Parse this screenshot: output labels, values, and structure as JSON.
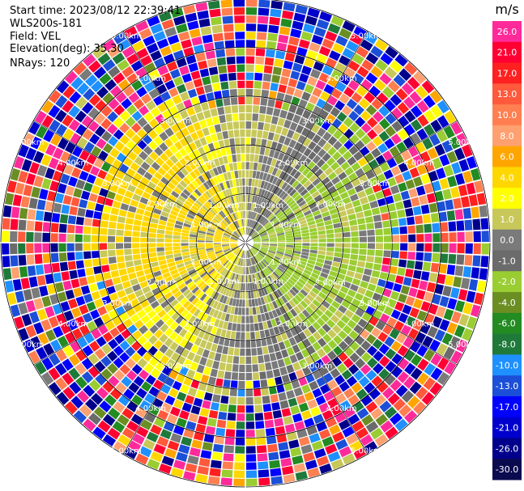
{
  "header": {
    "start_time": "Start time: 2023/08/12 22:39:41",
    "instrument": "WLS200s-181",
    "field": "Field: VEL",
    "elevation": "Elevation(deg): 35.30",
    "nrays": "NRays: 120"
  },
  "colorbar": {
    "unit": "m/s",
    "ticks": [
      "26.0",
      "21.0",
      "17.0",
      "13.0",
      "10.0",
      "8.0",
      "6.0",
      "4.0",
      "2.0",
      "1.0",
      "0.0",
      "-1.0",
      "-2.0",
      "-4.0",
      "-6.0",
      "-8.0",
      "-10.0",
      "-13.0",
      "-17.0",
      "-21.0",
      "-26.0",
      "-30.0"
    ],
    "colors": [
      "#ff2a9a",
      "#ff0033",
      "#ff2020",
      "#ff5a3c",
      "#ff7f50",
      "#ffa070",
      "#ffa500",
      "#ffd700",
      "#ffff00",
      "#c8c85a",
      "#7a7a7a",
      "#6b6b6b",
      "#9acd32",
      "#6b8e23",
      "#228b22",
      "#1f7a3a",
      "#1e90ff",
      "#1c4fd8",
      "#0000ff",
      "#0000cd",
      "#00008b",
      "#0a0a50"
    ]
  },
  "chart_data": {
    "type": "heatmap",
    "subtype": "polar-ppi",
    "title": "",
    "field": "VEL",
    "units": "m/s",
    "nrays": 120,
    "range_rings_km": [
      1.0,
      2.0,
      3.0,
      4.0,
      5.0
    ],
    "ring_labels": [
      "1.00km",
      "2.00km",
      "3.00km",
      "4.00km",
      "5.00km"
    ],
    "max_range_km": 5.0,
    "range_gates": 30,
    "grid": true,
    "colorbar_position": "right",
    "velocity_pattern": {
      "inner_region_note": "positive ~1-4 m/s toward north-west and south-west, negative ~-1 to -4 m/s toward north-east and south-east, near zero elsewhere",
      "outer_region_note": "noisy values across full scale beyond ~3 km"
    }
  }
}
